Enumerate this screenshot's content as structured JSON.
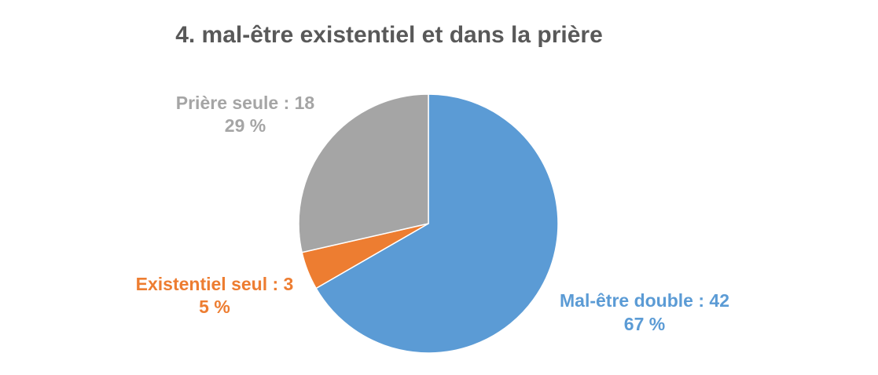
{
  "chart_data": {
    "type": "pie",
    "title": "4. mal-être existentiel et dans la prière",
    "slices": [
      {
        "label": "Mal-être double",
        "value": 42,
        "percent": "67 %",
        "color": "#5B9BD5",
        "text_line1": "Mal-être double : 42",
        "text_line2": "67 %"
      },
      {
        "label": "Existentiel seul",
        "value": 3,
        "percent": "5 %",
        "color": "#ED7D31",
        "text_line1": "Existentiel seul : 3",
        "text_line2": "5 %"
      },
      {
        "label": "Prière seule",
        "value": 18,
        "percent": "29 %",
        "color": "#A5A5A5",
        "text_line1": "Prière seule : 18",
        "text_line2": "29 %"
      }
    ],
    "start_angle": "12 o'clock",
    "direction": "clockwise",
    "legend": "none",
    "label_placement": "outside"
  }
}
